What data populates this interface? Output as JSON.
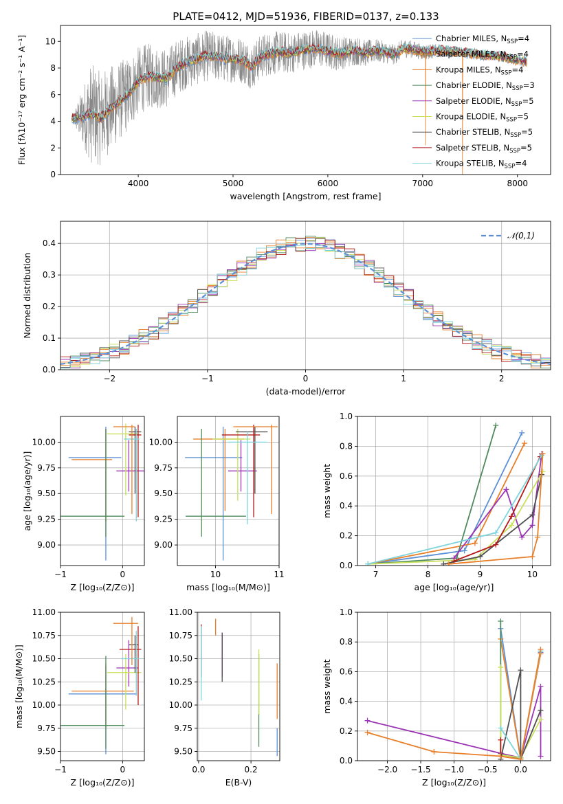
{
  "figure": {
    "title": "PLATE=0412, MJD=51936, FIBERID=0137, z=0.133"
  },
  "models": [
    {
      "name": "Chabrier MILES",
      "nssp": "4",
      "color": "#5b8fd6"
    },
    {
      "name": "Salpeter MILES",
      "nssp": "4",
      "color": "#e87e28"
    },
    {
      "name": "Kroupa MILES",
      "nssp": "4",
      "color": "#e87e28"
    },
    {
      "name": "Chabrier ELODIE",
      "nssp": "3",
      "color": "#4e8a5c"
    },
    {
      "name": "Salpeter ELODIE",
      "nssp": "5",
      "color": "#9b34b4"
    },
    {
      "name": "Kroupa ELODIE",
      "nssp": "5",
      "color": "#c8e05a"
    },
    {
      "name": "Chabrier STELIB",
      "nssp": "5",
      "color": "#4f4f4f"
    },
    {
      "name": "Salpeter STELIB",
      "nssp": "5",
      "color": "#b31a1a"
    },
    {
      "name": "Kroupa STELIB",
      "nssp": "4",
      "color": "#7fd4dc"
    }
  ],
  "chart_data": [
    {
      "id": "spectrum",
      "type": "line",
      "xlabel": "wavelength [Angstrom, rest frame]",
      "ylabel": "Flux [fλ10⁻¹⁷ erg cm⁻² s⁻¹ A⁻¹]",
      "xlim": [
        3180,
        8350
      ],
      "ylim": [
        0,
        11.2
      ],
      "xticks": [
        4000,
        5000,
        6000,
        7000,
        8000
      ],
      "yticks": [
        0,
        2,
        4,
        6,
        8,
        10
      ],
      "legend": "upper-right",
      "data_color": "#888888",
      "continuum": [
        [
          3300,
          4.2
        ],
        [
          3400,
          4.3
        ],
        [
          3500,
          4.6
        ],
        [
          3600,
          4.2
        ],
        [
          3700,
          4.9
        ],
        [
          3800,
          5.5
        ],
        [
          3900,
          6.1
        ],
        [
          4000,
          7.0
        ],
        [
          4100,
          7.4
        ],
        [
          4200,
          7.3
        ],
        [
          4300,
          7.2
        ],
        [
          4400,
          8.0
        ],
        [
          4500,
          8.4
        ],
        [
          4600,
          8.6
        ],
        [
          4700,
          8.9
        ],
        [
          4800,
          8.9
        ],
        [
          4900,
          8.7
        ],
        [
          5000,
          8.7
        ],
        [
          5100,
          8.6
        ],
        [
          5200,
          8.1
        ],
        [
          5300,
          8.9
        ],
        [
          5400,
          9.1
        ],
        [
          5500,
          9.2
        ],
        [
          5600,
          9.1
        ],
        [
          5700,
          9.3
        ],
        [
          5800,
          9.4
        ],
        [
          5900,
          9.5
        ],
        [
          6000,
          9.3
        ],
        [
          6100,
          9.1
        ],
        [
          6200,
          9.2
        ],
        [
          6300,
          9.3
        ],
        [
          6400,
          9.1
        ],
        [
          6500,
          9.3
        ],
        [
          6600,
          9.2
        ],
        [
          6700,
          9.0
        ],
        [
          6800,
          9.5
        ],
        [
          6900,
          9.4
        ],
        [
          7000,
          9.2
        ],
        [
          7200,
          9.3
        ],
        [
          7400,
          9.2
        ],
        [
          7600,
          9.0
        ],
        [
          7800,
          8.9
        ],
        [
          8000,
          8.6
        ],
        [
          8100,
          8.5
        ]
      ],
      "noise": [
        [
          3300,
          0.15
        ],
        [
          3500,
          3.8
        ],
        [
          3800,
          3.0
        ],
        [
          4000,
          2.6
        ],
        [
          4500,
          2.0
        ],
        [
          5000,
          1.8
        ],
        [
          5500,
          1.6
        ],
        [
          6000,
          1.4
        ],
        [
          6500,
          0.9
        ],
        [
          7000,
          0.6
        ],
        [
          7400,
          0.4
        ],
        [
          8100,
          0.3
        ]
      ],
      "model_dropouts": [
        [
          1,
          3520,
          0.0
        ],
        [
          2,
          3720,
          1.0
        ],
        [
          5,
          6800,
          0.0
        ],
        [
          1,
          7030,
          2.2
        ],
        [
          2,
          7420,
          0.0
        ]
      ]
    },
    {
      "id": "residuals",
      "type": "area",
      "xlabel": "(data-model)/error",
      "ylabel": "Normed distribution",
      "xlim": [
        -2.5,
        2.5
      ],
      "ylim": [
        0,
        0.47
      ],
      "xticks": [
        -2,
        -1,
        0,
        1,
        2
      ],
      "yticks": [
        0.0,
        0.1,
        0.2,
        0.3,
        0.4
      ],
      "bins": 50,
      "gaussian": {
        "label": "𝒩(0,1)",
        "mean": 0,
        "sigma": 1,
        "color": "#5b8fd6"
      },
      "legend": "upper-right"
    },
    {
      "id": "age-vs-Z",
      "type": "scatter",
      "xlabel": "Z [log₁₀(Z/Z⊙)]",
      "ylabel": "age  [log₁₀(age/yr)]",
      "xlim": [
        -1.0,
        0.35
      ],
      "ylim": [
        8.8,
        10.25
      ],
      "xticks": [
        -1,
        0
      ],
      "yticks": [
        9.0,
        9.25,
        9.5,
        9.75,
        10.0
      ],
      "points": [
        {
          "m": 0,
          "x": -0.27,
          "xerr": [
            0.6,
            0.25
          ],
          "y": 9.85,
          "yerr": [
            1.0,
            0.3
          ]
        },
        {
          "m": 1,
          "x": -0.27,
          "xerr": [
            0.55,
            0.1
          ],
          "y": 9.83,
          "yerr": [
            0.6,
            0.3
          ]
        },
        {
          "m": 3,
          "x": -0.27,
          "xerr": [
            0.75,
            0.3
          ],
          "y": 9.28,
          "yerr": [
            0.2,
            0.85
          ]
        },
        {
          "m": 4,
          "x": 0.1,
          "xerr": [
            0.2,
            0.25
          ],
          "y": 9.72,
          "yerr": [
            0.2,
            0.3
          ]
        },
        {
          "m": 5,
          "x": 0.05,
          "xerr": [
            0.3,
            0.2
          ],
          "y": 10.08,
          "yerr": [
            0.6,
            0.1
          ]
        },
        {
          "m": 6,
          "x": 0.2,
          "xerr": [
            0.1,
            0.1
          ],
          "y": 10.1,
          "yerr": [
            0.6,
            0.05
          ]
        },
        {
          "m": 7,
          "x": 0.25,
          "xerr": [
            0.15,
            0.05
          ],
          "y": 10.07,
          "yerr": [
            0.8,
            0.1
          ]
        },
        {
          "m": 8,
          "x": 0.22,
          "xerr": [
            0.2,
            0.05
          ],
          "y": 10.03,
          "yerr": [
            0.8,
            0.1
          ]
        },
        {
          "m": 2,
          "x": 0.15,
          "xerr": [
            0.3,
            0.05
          ],
          "y": 10.15,
          "yerr": [
            0.85,
            0.02
          ]
        }
      ]
    },
    {
      "id": "age-vs-mass",
      "type": "scatter",
      "xlabel": "mass [log₁₀(M/M⊙)]",
      "ylabel": "",
      "xlim": [
        9.4,
        11.0
      ],
      "ylim": [
        8.8,
        10.25
      ],
      "xticks": [
        9,
        10,
        11
      ],
      "yticks": [
        9.0,
        9.25,
        9.5,
        9.75,
        10.0
      ],
      "points": [
        {
          "m": 0,
          "x": 10.12,
          "xerr": [
            0.6,
            0.3
          ],
          "y": 9.85,
          "yerr": [
            1.0,
            0.3
          ]
        },
        {
          "m": 1,
          "x": 10.15,
          "xerr": [
            0.5,
            0.3
          ],
          "y": 10.03,
          "yerr": [
            0.7,
            0.1
          ]
        },
        {
          "m": 3,
          "x": 9.78,
          "xerr": [
            0.25,
            0.7
          ],
          "y": 9.28,
          "yerr": [
            0.2,
            0.85
          ]
        },
        {
          "m": 4,
          "x": 10.4,
          "xerr": [
            0.2,
            0.25
          ],
          "y": 9.72,
          "yerr": [
            0.2,
            0.3
          ]
        },
        {
          "m": 5,
          "x": 10.35,
          "xerr": [
            0.4,
            0.2
          ],
          "y": 10.03,
          "yerr": [
            0.6,
            0.1
          ]
        },
        {
          "m": 6,
          "x": 10.62,
          "xerr": [
            0.3,
            0.2
          ],
          "y": 10.1,
          "yerr": [
            0.6,
            0.05
          ]
        },
        {
          "m": 7,
          "x": 10.6,
          "xerr": [
            0.5,
            0.1
          ],
          "y": 10.07,
          "yerr": [
            0.8,
            0.1
          ]
        },
        {
          "m": 8,
          "x": 10.5,
          "xerr": [
            0.3,
            0.3
          ],
          "y": 10.0,
          "yerr": [
            0.8,
            0.1
          ]
        },
        {
          "m": 2,
          "x": 10.88,
          "xerr": [
            0.6,
            0.1
          ],
          "y": 10.15,
          "yerr": [
            0.85,
            0.02
          ]
        }
      ]
    },
    {
      "id": "massweight-vs-age",
      "type": "line",
      "xlabel": "age  [log₁₀(age/yr)]",
      "ylabel": "mass weight",
      "xlim": [
        6.65,
        10.35
      ],
      "ylim": [
        0,
        1.0
      ],
      "xticks": [
        7,
        8,
        9,
        10
      ],
      "yticks": [
        0.0,
        0.2,
        0.4,
        0.6,
        0.8,
        1.0
      ],
      "series": [
        {
          "m": 0,
          "x": [
            6.85,
            8.7,
            9.8
          ],
          "y": [
            0.01,
            0.1,
            0.89
          ]
        },
        {
          "m": 1,
          "x": [
            6.85,
            8.9,
            9.85
          ],
          "y": [
            0.01,
            0.15,
            0.82
          ]
        },
        {
          "m": 3,
          "x": [
            6.85,
            8.55,
            9.3
          ],
          "y": [
            0.01,
            0.05,
            0.94
          ]
        },
        {
          "m": 4,
          "x": [
            8.5,
            9.5,
            9.8,
            10.0,
            10.18
          ],
          "y": [
            0.05,
            0.51,
            0.19,
            0.27,
            0.75
          ]
        },
        {
          "m": 5,
          "x": [
            6.85,
            8.9,
            9.6,
            10.2
          ],
          "y": [
            0.01,
            0.04,
            0.27,
            0.63
          ]
        },
        {
          "m": 6,
          "x": [
            8.3,
            9.0,
            10.0,
            10.18
          ],
          "y": [
            0.01,
            0.06,
            0.34,
            0.61
          ]
        },
        {
          "m": 7,
          "x": [
            8.5,
            9.3,
            9.6,
            10.15
          ],
          "y": [
            0.03,
            0.14,
            0.33,
            0.73
          ]
        },
        {
          "m": 8,
          "x": [
            6.85,
            9.3,
            10.18
          ],
          "y": [
            0.01,
            0.22,
            0.74
          ]
        },
        {
          "m": 2,
          "x": [
            8.4,
            10.0,
            10.1,
            10.2
          ],
          "y": [
            0.01,
            0.06,
            0.19,
            0.75
          ]
        }
      ]
    },
    {
      "id": "mass-vs-Z",
      "type": "scatter",
      "xlabel": "Z [log₁₀(Z/Z⊙)]",
      "ylabel": "mass [log₁₀(M/M⊙)]",
      "xlim": [
        -1.0,
        0.35
      ],
      "ylim": [
        9.4,
        11.0
      ],
      "xticks": [
        -1,
        0
      ],
      "yticks": [
        9.5,
        9.75,
        10.0,
        10.25,
        10.5,
        10.75,
        11.0
      ],
      "points": [
        {
          "m": 0,
          "x": -0.27,
          "xerr": [
            0.6,
            0.5
          ],
          "y": 10.12,
          "yerr": [
            0.65,
            0.3
          ]
        },
        {
          "m": 1,
          "x": -0.27,
          "xerr": [
            0.55,
            0.45
          ],
          "y": 10.15,
          "yerr": [
            0.4,
            0.3
          ]
        },
        {
          "m": 3,
          "x": -0.27,
          "xerr": [
            0.75,
            0.3
          ],
          "y": 9.78,
          "yerr": [
            0.25,
            0.75
          ]
        },
        {
          "m": 4,
          "x": 0.1,
          "xerr": [
            0.2,
            0.15
          ],
          "y": 10.4,
          "yerr": [
            0.2,
            0.3
          ]
        },
        {
          "m": 5,
          "x": 0.05,
          "xerr": [
            0.3,
            0.25
          ],
          "y": 10.35,
          "yerr": [
            0.4,
            0.2
          ]
        },
        {
          "m": 6,
          "x": 0.2,
          "xerr": [
            0.1,
            0.05
          ],
          "y": 10.65,
          "yerr": [
            0.3,
            0.1
          ]
        },
        {
          "m": 7,
          "x": 0.25,
          "xerr": [
            0.3,
            0.05
          ],
          "y": 10.6,
          "yerr": [
            0.6,
            0.25
          ]
        },
        {
          "m": 8,
          "x": 0.22,
          "xerr": [
            0.25,
            0.05
          ],
          "y": 10.5,
          "yerr": [
            0.4,
            0.3
          ]
        },
        {
          "m": 2,
          "x": 0.15,
          "xerr": [
            0.3,
            0.1
          ],
          "y": 10.88,
          "yerr": [
            0.45,
            0.07
          ]
        }
      ]
    },
    {
      "id": "mass-vs-ebv",
      "type": "scatter",
      "xlabel": "E(B-V)",
      "ylabel": "",
      "xlim": [
        -0.005,
        0.31
      ],
      "ylim": [
        9.4,
        11.0
      ],
      "xticks": [
        0.0,
        0.2
      ],
      "yticks": [
        9.5,
        9.75,
        10.0,
        10.25,
        10.5,
        10.75,
        11.0
      ],
      "points": [
        {
          "m": 0,
          "x": 0.3,
          "xerr": [
            0,
            0
          ],
          "y": 9.6,
          "yerr": [
            0.15,
            0.15
          ]
        },
        {
          "m": 1,
          "x": 0.3,
          "xerr": [
            0,
            0
          ],
          "y": 10.15,
          "yerr": [
            0.3,
            0.3
          ]
        },
        {
          "m": 3,
          "x": 0.23,
          "xerr": [
            0,
            0
          ],
          "y": 10.0,
          "yerr": [
            0.45,
            0.55
          ]
        },
        {
          "m": 4,
          "x": 0.09,
          "xerr": [
            0,
            0
          ],
          "y": 10.5,
          "yerr": [
            0.2,
            0.28
          ]
        },
        {
          "m": 5,
          "x": 0.23,
          "xerr": [
            0,
            0
          ],
          "y": 10.25,
          "yerr": [
            0.35,
            0.35
          ]
        },
        {
          "m": 6,
          "x": 0.09,
          "xerr": [
            0,
            0
          ],
          "y": 10.5,
          "yerr": [
            0.25,
            0.28
          ]
        },
        {
          "m": 7,
          "x": 0.01,
          "xerr": [
            0,
            0
          ],
          "y": 10.6,
          "yerr": [
            0.3,
            0.27
          ]
        },
        {
          "m": 8,
          "x": 0.01,
          "xerr": [
            0,
            0
          ],
          "y": 10.4,
          "yerr": [
            0.35,
            0.45
          ]
        },
        {
          "m": 2,
          "x": 0.065,
          "xerr": [
            0,
            0
          ],
          "y": 10.85,
          "yerr": [
            0.1,
            0.08
          ]
        }
      ]
    },
    {
      "id": "massweight-vs-Z",
      "type": "line",
      "xlabel": "Z [log₁₀(Z/Z⊙)]",
      "ylabel": "mass weight",
      "xlim": [
        -2.45,
        0.45
      ],
      "ylim": [
        0,
        1.0
      ],
      "xticks": [
        -2.0,
        -1.5,
        -1.0,
        -0.5,
        0.0
      ],
      "yticks": [
        0.0,
        0.2,
        0.4,
        0.6,
        0.8,
        1.0
      ],
      "series": [
        {
          "m": 0,
          "x": [
            -0.3,
            0.0,
            0.3
          ],
          "y": [
            0.89,
            0.01,
            0.73
          ]
        },
        {
          "m": 1,
          "x": [
            -0.3,
            0.0,
            0.3
          ],
          "y": [
            0.82,
            0.01,
            0.72
          ]
        },
        {
          "m": 3,
          "x": [
            -0.3,
            -0.3,
            0.0
          ],
          "y": [
            0.94,
            0.05,
            0.01
          ]
        },
        {
          "m": 4,
          "x": [
            -2.3,
            -0.3,
            0.0,
            0.3,
            0.3
          ],
          "y": [
            0.27,
            0.05,
            0.02,
            0.5,
            0.03
          ]
        },
        {
          "m": 5,
          "x": [
            -0.3,
            -0.3,
            0.0,
            0.3
          ],
          "y": [
            0.63,
            0.04,
            0.02,
            0.28
          ]
        },
        {
          "m": 6,
          "x": [
            -0.3,
            0.0,
            0.0,
            0.3
          ],
          "y": [
            0.01,
            0.61,
            0.01,
            0.34
          ]
        },
        {
          "m": 7,
          "x": [
            -0.3,
            -0.3,
            0.0
          ],
          "y": [
            0.14,
            0.03,
            0.01
          ]
        },
        {
          "m": 8,
          "x": [
            -0.3,
            0.0,
            0.3
          ],
          "y": [
            0.22,
            0.01,
            0.74
          ]
        },
        {
          "m": 2,
          "x": [
            -2.3,
            -1.3,
            -0.3,
            0.0,
            0.3
          ],
          "y": [
            0.19,
            0.06,
            0.03,
            0.01,
            0.75
          ]
        }
      ]
    }
  ]
}
